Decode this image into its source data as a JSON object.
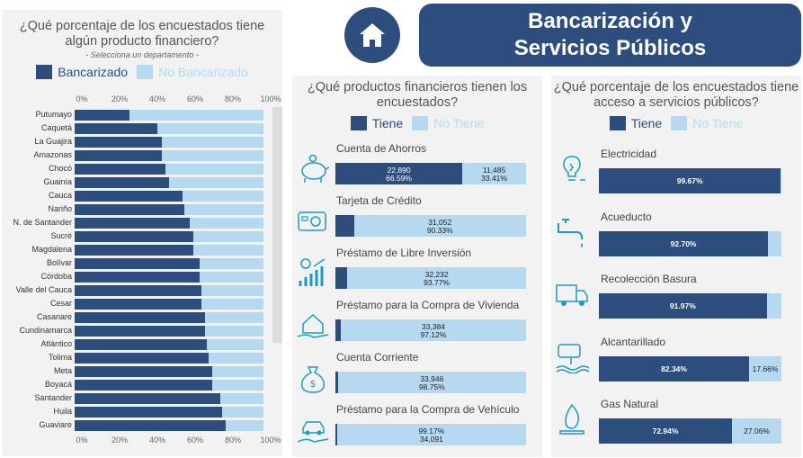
{
  "header": {
    "title_line1": "Bancarización y",
    "title_line2": "Servicios Públicos"
  },
  "colors": {
    "tiene": "#2c4d7e",
    "no_tiene": "#b7d9ef",
    "panel": "#f2f2f2"
  },
  "left_panel": {
    "title_line1": "¿Qué porcentaje de los encuestados tiene",
    "title_line2": "algún producto financiero?",
    "subtitle": "- Selecciona un departamento -",
    "legend_yes": "Bancarizado",
    "legend_no": "No Bancarizado"
  },
  "middle_panel": {
    "title_line1": "¿Qué productos financieros tienen los",
    "title_line2": "encuestados?",
    "legend_yes": "Tiene",
    "legend_no": "No Tiene"
  },
  "right_panel": {
    "title_line1": "¿Qué porcentaje de los encuestados tiene",
    "title_line2": "acceso a servicios públicos?",
    "legend_yes": "Tiene",
    "legend_no": "No Tiene"
  },
  "chart_data": [
    {
      "type": "bar",
      "orientation": "horizontal",
      "stacked": true,
      "x_ticks": [
        "0%",
        "20%",
        "40%",
        "60%",
        "80%",
        "100%"
      ],
      "xlim": [
        0,
        100
      ],
      "categories": [
        "Putumayo",
        "Caquetá",
        "La Guajira",
        "Amazonas",
        "Chocó",
        "Guainía",
        "Cauca",
        "Nariño",
        "N. de Santander",
        "Sucre",
        "Magdalena",
        "Bolívar",
        "Córdoba",
        "Valle del Cauca",
        "Cesar",
        "Casanare",
        "Cundinamarca",
        "Atlántico",
        "Tolima",
        "Meta",
        "Boyacá",
        "Santander",
        "Huila",
        "Guaviare"
      ],
      "series": [
        {
          "name": "Bancarizado",
          "values": [
            29,
            44,
            46,
            46,
            48,
            50,
            57,
            58,
            61,
            63,
            63,
            66,
            66,
            67,
            67,
            69,
            69,
            70,
            71,
            73,
            73,
            77,
            78,
            80
          ]
        },
        {
          "name": "No Bancarizado",
          "values": [
            71,
            56,
            54,
            54,
            52,
            50,
            43,
            42,
            39,
            37,
            37,
            34,
            34,
            33,
            33,
            31,
            31,
            30,
            29,
            27,
            27,
            23,
            22,
            20
          ]
        }
      ]
    },
    {
      "type": "bar",
      "orientation": "horizontal",
      "stacked": true,
      "items": [
        {
          "name": "Cuenta de Ahorros",
          "icon": "piggy-bank-icon",
          "tiene_pct": 66.59,
          "tiene_count": "22,890",
          "tiene_pct_label": "66.59%",
          "no_tiene_count": "11,485",
          "no_tiene_pct_label": "33.41%"
        },
        {
          "name": "Tarjeta de Crédito",
          "icon": "credit-card-icon",
          "tiene_pct": 9.67,
          "no_tiene_count": "31,052",
          "no_tiene_pct_label": "90.33%"
        },
        {
          "name": "Préstamo de Libre Inversión",
          "icon": "growth-chart-icon",
          "tiene_pct": 6.23,
          "no_tiene_count": "32,232",
          "no_tiene_pct_label": "93.77%"
        },
        {
          "name": "Préstamo para la Compra de Vivienda",
          "icon": "house-hand-icon",
          "tiene_pct": 2.88,
          "no_tiene_count": "33,384",
          "no_tiene_pct_label": "97.12%"
        },
        {
          "name": "Cuenta Corriente",
          "icon": "money-bag-icon",
          "tiene_pct": 1.25,
          "no_tiene_count": "33,946",
          "no_tiene_pct_label": "98.75%"
        },
        {
          "name": "Préstamo para la Compra de Vehículo",
          "icon": "car-hand-icon",
          "tiene_pct": 0.83,
          "no_tiene_count": "34,091",
          "no_tiene_pct_label": "99.17%"
        }
      ]
    },
    {
      "type": "bar",
      "orientation": "horizontal",
      "stacked": true,
      "items": [
        {
          "name": "Electricidad",
          "icon": "light-bulb-icon",
          "tiene_pct": 99.67,
          "tiene_label": "99.67%",
          "no_tiene_label": ""
        },
        {
          "name": "Acueducto",
          "icon": "water-faucet-icon",
          "tiene_pct": 92.7,
          "tiene_label": "92.70%",
          "no_tiene_label": ""
        },
        {
          "name": "Recolección Basura",
          "icon": "garbage-truck-icon",
          "tiene_pct": 91.97,
          "tiene_label": "91.97%",
          "no_tiene_label": ""
        },
        {
          "name": "Alcantarillado",
          "icon": "sewer-pipe-icon",
          "tiene_pct": 82.34,
          "tiene_label": "82.34%",
          "no_tiene_label": "17.66%"
        },
        {
          "name": "Gas Natural",
          "icon": "gas-flame-icon",
          "tiene_pct": 72.94,
          "tiene_label": "72.94%",
          "no_tiene_label": "27.06%"
        }
      ]
    }
  ]
}
